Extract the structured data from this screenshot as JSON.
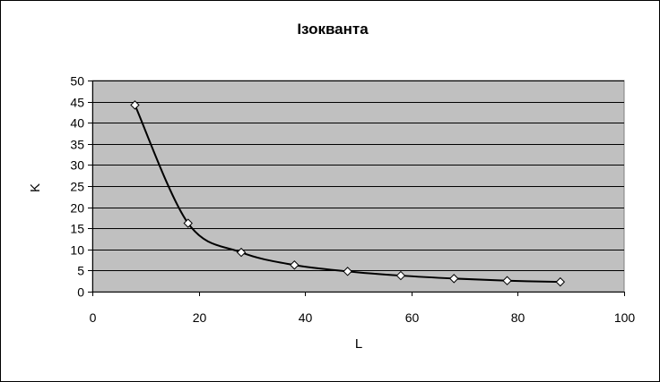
{
  "chart_data": {
    "type": "scatter",
    "title": "Ізокванта",
    "xlabel": "L",
    "ylabel": "K",
    "xlim": [
      0,
      100
    ],
    "ylim": [
      0,
      50
    ],
    "x_ticks": [
      0,
      20,
      40,
      60,
      80,
      100
    ],
    "y_ticks": [
      0,
      5,
      10,
      15,
      20,
      25,
      30,
      35,
      40,
      45,
      50
    ],
    "grid": "horizontal",
    "legend": "none",
    "smoothed_line": true,
    "marker": "diamond",
    "colors": {
      "plot_background": "#c0c0c0",
      "line": "#000000",
      "marker_fill": "#ffffff",
      "gridline": "#000000"
    },
    "series": [
      {
        "x": [
          8,
          18,
          28,
          38,
          48,
          58,
          68,
          78,
          88
        ],
        "y": [
          44.2,
          16.2,
          9.3,
          6.3,
          4.8,
          3.8,
          3.1,
          2.6,
          2.3
        ]
      }
    ]
  }
}
